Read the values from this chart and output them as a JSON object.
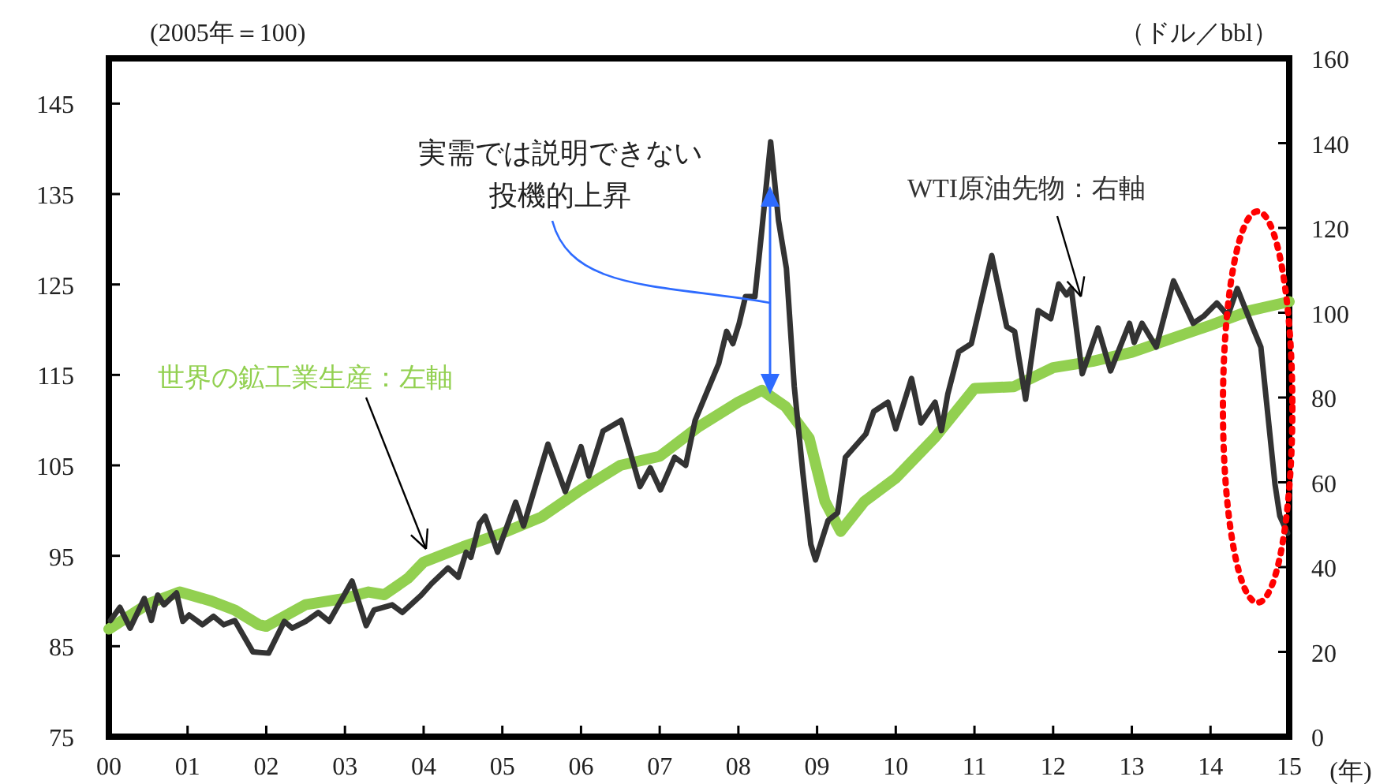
{
  "chart_data": {
    "type": "line",
    "xlabel": "(年)",
    "ylabel": "(2005年＝100)",
    "y2label": "（ドル／bbl）",
    "xlim": [
      2000,
      2015
    ],
    "ylim": [
      75,
      150
    ],
    "y2lim": [
      0,
      160
    ],
    "xticks": [
      {
        "value": 2000,
        "label": "00"
      },
      {
        "value": 2001,
        "label": "01"
      },
      {
        "value": 2002,
        "label": "02"
      },
      {
        "value": 2003,
        "label": "03"
      },
      {
        "value": 2004,
        "label": "04"
      },
      {
        "value": 2005,
        "label": "05"
      },
      {
        "value": 2006,
        "label": "06"
      },
      {
        "value": 2007,
        "label": "07"
      },
      {
        "value": 2008,
        "label": "08"
      },
      {
        "value": 2009,
        "label": "09"
      },
      {
        "value": 2010,
        "label": "10"
      },
      {
        "value": 2011,
        "label": "11"
      },
      {
        "value": 2012,
        "label": "12"
      },
      {
        "value": 2013,
        "label": "13"
      },
      {
        "value": 2014,
        "label": "14"
      },
      {
        "value": 2015,
        "label": "15"
      }
    ],
    "yticks": [
      75,
      85,
      95,
      105,
      115,
      125,
      135,
      145
    ],
    "y2ticks": [
      0,
      20,
      40,
      60,
      80,
      100,
      120,
      140,
      160
    ],
    "annotations": [
      "実需では説明できない",
      "投機的上昇"
    ],
    "series": [
      {
        "name": "世界の鉱工業生産：左軸",
        "color": "#92d050",
        "axis": "y",
        "x": [
          2000.0,
          2000.5,
          2000.9,
          2001.3,
          2001.6,
          2001.9,
          2002.0,
          2002.5,
          2003.0,
          2003.3,
          2003.5,
          2003.8,
          2004.0,
          2004.5,
          2005.0,
          2005.5,
          2006.0,
          2006.5,
          2007.0,
          2007.5,
          2008.0,
          2008.3,
          2008.6,
          2008.9,
          2009.1,
          2009.3,
          2009.6,
          2010.0,
          2010.5,
          2011.0,
          2011.5,
          2012.0,
          2012.5,
          2013.0,
          2013.5,
          2014.0,
          2014.5,
          2015.0
        ],
        "values": [
          86.9,
          89.7,
          91.0,
          90.0,
          89.0,
          87.4,
          87.2,
          89.6,
          90.3,
          91.0,
          90.7,
          92.5,
          94.3,
          96.0,
          97.5,
          99.3,
          102.3,
          105.0,
          106.0,
          109.3,
          112.0,
          113.3,
          111.5,
          108.0,
          101.0,
          97.7,
          101.0,
          103.6,
          108.1,
          113.5,
          113.7,
          115.8,
          116.5,
          117.5,
          119.0,
          120.5,
          122.1,
          123.1
        ]
      },
      {
        "name": "WTI原油先物：右軸",
        "color": "#333333",
        "axis": "y2",
        "x": [
          2000.02,
          2000.14,
          2000.27,
          2000.45,
          2000.54,
          2000.62,
          2000.7,
          2000.86,
          2000.94,
          2001.02,
          2001.19,
          2001.33,
          2001.46,
          2001.6,
          2001.83,
          2002.03,
          2002.23,
          2002.33,
          2002.5,
          2002.66,
          2002.8,
          2003.09,
          2003.27,
          2003.37,
          2003.6,
          2003.73,
          2003.97,
          2004.1,
          2004.31,
          2004.44,
          2004.54,
          2004.6,
          2004.71,
          2004.78,
          2004.94,
          2005.17,
          2005.27,
          2005.58,
          2005.8,
          2006.0,
          2006.1,
          2006.28,
          2006.51,
          2006.75,
          2006.88,
          2007.01,
          2007.19,
          2007.33,
          2007.45,
          2007.75,
          2007.85,
          2007.93,
          2008.01,
          2008.09,
          2008.21,
          2008.29,
          2008.41,
          2008.51,
          2008.61,
          2008.71,
          2008.82,
          2008.92,
          2008.98,
          2009.14,
          2009.26,
          2009.36,
          2009.62,
          2009.72,
          2009.9,
          2010.0,
          2010.2,
          2010.32,
          2010.5,
          2010.58,
          2010.66,
          2010.8,
          2010.96,
          2011.22,
          2011.41,
          2011.51,
          2011.65,
          2011.81,
          2011.97,
          2012.07,
          2012.17,
          2012.23,
          2012.37,
          2012.57,
          2012.73,
          2012.97,
          2013.03,
          2013.13,
          2013.31,
          2013.53,
          2013.78,
          2013.92,
          2014.08,
          2014.22,
          2014.34,
          2014.54,
          2014.64,
          2014.82,
          2014.88,
          2014.98
        ],
        "values": [
          27.4,
          30.5,
          25.6,
          32.6,
          27.4,
          33.4,
          31.1,
          33.9,
          27.2,
          28.7,
          26.4,
          28.4,
          26.4,
          27.4,
          20.0,
          19.7,
          27.2,
          25.6,
          27.2,
          29.3,
          27.2,
          36.7,
          26.2,
          29.9,
          31.1,
          29.3,
          33.4,
          36.1,
          39.8,
          37.6,
          43.5,
          42.3,
          50.3,
          52.0,
          43.5,
          55.3,
          49.7,
          69.0,
          57.8,
          68.4,
          61.5,
          72.1,
          74.6,
          59.0,
          63.4,
          58.2,
          65.9,
          64.0,
          74.6,
          88.0,
          95.6,
          92.7,
          97.5,
          103.8,
          103.8,
          118.0,
          140.3,
          121.7,
          110.5,
          82.6,
          62.1,
          45.4,
          41.7,
          51.0,
          52.8,
          65.9,
          71.4,
          76.7,
          78.9,
          72.6,
          84.5,
          74.0,
          78.9,
          72.2,
          80.7,
          90.8,
          92.7,
          113.5,
          96.7,
          95.6,
          79.6,
          100.5,
          98.6,
          106.8,
          104.2,
          105.7,
          85.6,
          96.4,
          86.3,
          97.5,
          93.0,
          97.5,
          91.9,
          107.5,
          97.5,
          99.3,
          102.3,
          99.3,
          105.7,
          96.4,
          91.9,
          59.5,
          52.1,
          48.0
        ]
      }
    ]
  }
}
